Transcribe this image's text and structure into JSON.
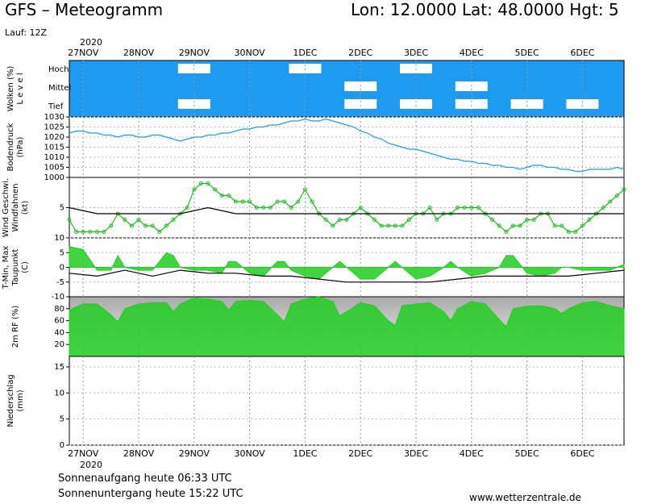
{
  "header": {
    "title": "GFS – Meteogramm",
    "coords": "Lon: 12.0000  Lat: 48.0000  Hgt: 5",
    "run": "Lauf: 12Z"
  },
  "footer": {
    "sunrise": "Sonnenaufgang heute 06:33 UTC",
    "sunset": "Sonnenuntergang heute 15:22 UTC",
    "website": "www.wetterzentrale.de"
  },
  "chart_data": {
    "type": "line",
    "x_year": "2020",
    "x_ticks": [
      "27NOV",
      "28NOV",
      "29NOV",
      "30NOV",
      "1DEC",
      "2DEC",
      "3DEC",
      "4DEC",
      "5DEC",
      "6DEC"
    ],
    "panels": [
      {
        "id": "clouds",
        "type": "heatmap",
        "ylabel": "Wolken (%)",
        "ylabel2": "L e v e l",
        "levels": [
          "Hoch",
          "Mittel",
          "Tief"
        ],
        "colors": {
          "background": "#1e9bf0",
          "clear": "#ffffff"
        }
      },
      {
        "id": "pressure",
        "type": "line",
        "ylabel": "Bodendruck",
        "ylabel2": "(hPa)",
        "ylim": [
          1000,
          1030
        ],
        "yticks": [
          1000,
          1005,
          1010,
          1015,
          1020,
          1025,
          1030
        ],
        "series": [
          {
            "color": "#1e9bf0",
            "x": [
              0,
              3,
              6,
              9,
              12,
              15,
              18,
              21,
              24,
              27,
              30,
              33,
              36,
              39,
              42,
              45,
              48,
              51,
              54,
              57,
              60,
              63,
              66,
              69,
              72,
              75,
              78,
              81,
              84,
              87,
              90,
              93,
              96,
              99,
              102,
              105,
              108,
              111,
              114,
              117,
              120,
              123,
              126,
              129,
              132,
              135,
              138,
              141,
              144,
              147,
              150,
              153,
              156,
              159,
              162,
              165,
              168,
              171,
              174,
              177,
              180,
              183,
              186,
              189,
              192,
              195,
              198,
              201,
              204,
              207,
              210,
              213,
              216,
              219,
              222,
              225,
              228,
              231,
              234,
              237,
              240
            ],
            "values": [
              1022,
              1023,
              1023,
              1022,
              1022,
              1021,
              1021,
              1020,
              1021,
              1021,
              1020,
              1020,
              1021,
              1021,
              1020,
              1019,
              1018,
              1019,
              1020,
              1020,
              1021,
              1021,
              1022,
              1022,
              1023,
              1024,
              1024,
              1025,
              1025,
              1026,
              1026,
              1027,
              1028,
              1028,
              1029,
              1028,
              1028,
              1029,
              1028,
              1027,
              1026,
              1025,
              1023,
              1022,
              1020,
              1019,
              1017,
              1016,
              1015,
              1014,
              1014,
              1013,
              1012,
              1011,
              1010,
              1009,
              1009,
              1008,
              1008,
              1007,
              1007,
              1006,
              1006,
              1005,
              1005,
              1004,
              1005,
              1006,
              1006,
              1005,
              1005,
              1004,
              1004,
              1003,
              1003,
              1004,
              1004,
              1004,
              1004,
              1005,
              1004
            ]
          }
        ]
      },
      {
        "id": "wind",
        "type": "line",
        "ylabel": "Wind Geschwi.",
        "ylabel2": "Windfahnen",
        "ylabel3": "(kt)",
        "ylim": [
          0,
          10
        ],
        "yticks": [
          5
        ],
        "series": [
          {
            "color": "#22bb22",
            "x": [
              0,
              3,
              6,
              9,
              12,
              15,
              18,
              21,
              24,
              27,
              30,
              33,
              36,
              39,
              42,
              45,
              48,
              51,
              54,
              57,
              60,
              63,
              66,
              69,
              72,
              75,
              78,
              81,
              84,
              87,
              90,
              93,
              96,
              99,
              102,
              105,
              108,
              111,
              114,
              117,
              120,
              123,
              126,
              129,
              132,
              135,
              138,
              141,
              144,
              147,
              150,
              153,
              156,
              159,
              162,
              165,
              168,
              171,
              174,
              177,
              180,
              183,
              186,
              189,
              192,
              195,
              198,
              201,
              204,
              207,
              210,
              213,
              216,
              219,
              222,
              225,
              228,
              231,
              234,
              237,
              240
            ],
            "values": [
              3,
              1,
              1,
              1,
              1,
              1,
              2,
              4,
              3,
              2,
              3,
              2,
              2,
              1,
              2,
              3,
              4,
              5,
              8,
              9,
              9,
              8,
              7,
              7,
              6,
              6,
              6,
              5,
              5,
              5,
              6,
              6,
              5,
              6,
              8,
              6,
              4,
              3,
              2,
              3,
              3,
              4,
              5,
              4,
              3,
              2,
              2,
              2,
              2,
              3,
              4,
              4,
              5,
              3,
              4,
              4,
              5,
              5,
              5,
              5,
              4,
              3,
              2,
              1,
              2,
              2,
              3,
              3,
              4,
              4,
              2,
              2,
              1,
              1,
              2,
              3,
              4,
              5,
              6,
              7,
              8
            ]
          },
          {
            "color": "#000000",
            "x": [
              0,
              12,
              24,
              36,
              48,
              60,
              72,
              84,
              96,
              108,
              120,
              132,
              144,
              156,
              168,
              180,
              192,
              204,
              216,
              228,
              240
            ],
            "values": [
              5,
              4,
              4,
              4,
              4,
              5,
              4,
              4,
              4,
              4,
              4,
              4,
              4,
              4,
              4,
              4,
              4,
              4,
              4,
              4,
              4
            ]
          }
        ]
      },
      {
        "id": "temperature",
        "type": "area",
        "ylabel": "T-Min, Max",
        "ylabel2": "Taupunkt",
        "ylabel3": "(C)",
        "ylim": [
          -10,
          10
        ],
        "yticks": [
          -10,
          -5,
          0,
          5,
          10
        ],
        "series": [
          {
            "color": "#22cc22",
            "x": [
              0,
              6,
              12,
              18,
              21,
              24,
              30,
              36,
              42,
              45,
              48,
              54,
              60,
              66,
              69,
              72,
              78,
              84,
              90,
              93,
              96,
              102,
              108,
              114,
              117,
              120,
              126,
              132,
              138,
              141,
              144,
              150,
              156,
              162,
              165,
              168,
              174,
              180,
              186,
              189,
              192,
              198,
              204,
              210,
              213,
              216,
              222,
              228,
              234,
              240
            ],
            "values": [
              7,
              6,
              -1,
              -1,
              4,
              0,
              -1,
              -1,
              5,
              4,
              0,
              -1,
              -1,
              -2,
              2,
              2,
              -2,
              -3,
              2,
              2,
              -1,
              -3,
              -4,
              0,
              2,
              0,
              -4,
              -4,
              0,
              2,
              0,
              -4,
              -3,
              0,
              2,
              0,
              -3,
              -2,
              0,
              4,
              4,
              -2,
              -3,
              -2,
              0,
              0,
              -1,
              -1,
              -1,
              1
            ]
          },
          {
            "color": "#000000",
            "x": [
              0,
              12,
              24,
              36,
              48,
              60,
              72,
              84,
              96,
              108,
              120,
              132,
              144,
              156,
              168,
              180,
              192,
              204,
              216,
              228,
              240
            ],
            "values": [
              -2,
              -3,
              -1,
              -3,
              -1,
              -2,
              -2,
              -3,
              -3,
              -4,
              -5,
              -5,
              -5,
              -5,
              -4,
              -3,
              -3,
              -3,
              -3,
              -2,
              -1
            ]
          }
        ]
      },
      {
        "id": "humidity",
        "type": "area",
        "ylabel": "2m RF (%)",
        "ylim": [
          0,
          100
        ],
        "yticks": [
          20,
          40,
          60,
          80
        ],
        "series": [
          {
            "color": "#22cc22",
            "x": [
              0,
              6,
              12,
              18,
              21,
              24,
              30,
              36,
              42,
              45,
              48,
              54,
              60,
              66,
              69,
              72,
              78,
              84,
              90,
              93,
              96,
              102,
              108,
              114,
              117,
              120,
              126,
              132,
              138,
              141,
              144,
              150,
              156,
              162,
              165,
              168,
              174,
              180,
              186,
              189,
              192,
              198,
              204,
              210,
              213,
              216,
              222,
              228,
              234,
              240
            ],
            "values": [
              78,
              88,
              88,
              70,
              58,
              80,
              88,
              90,
              90,
              75,
              88,
              98,
              96,
              92,
              78,
              92,
              94,
              92,
              70,
              58,
              88,
              96,
              100,
              92,
              68,
              75,
              90,
              85,
              60,
              52,
              85,
              88,
              90,
              75,
              60,
              80,
              92,
              88,
              62,
              50,
              80,
              84,
              85,
              80,
              72,
              80,
              90,
              92,
              85,
              80
            ]
          }
        ]
      },
      {
        "id": "precipitation",
        "type": "bar",
        "ylabel": "Niederschlag",
        "ylabel2": "(mm)",
        "ylim": [
          0,
          17
        ],
        "yticks": [
          0,
          5,
          10,
          15
        ],
        "series": [
          {
            "color": "#22cc22",
            "x": [
              0,
              240
            ],
            "values": [
              0,
              0
            ]
          }
        ]
      }
    ]
  }
}
